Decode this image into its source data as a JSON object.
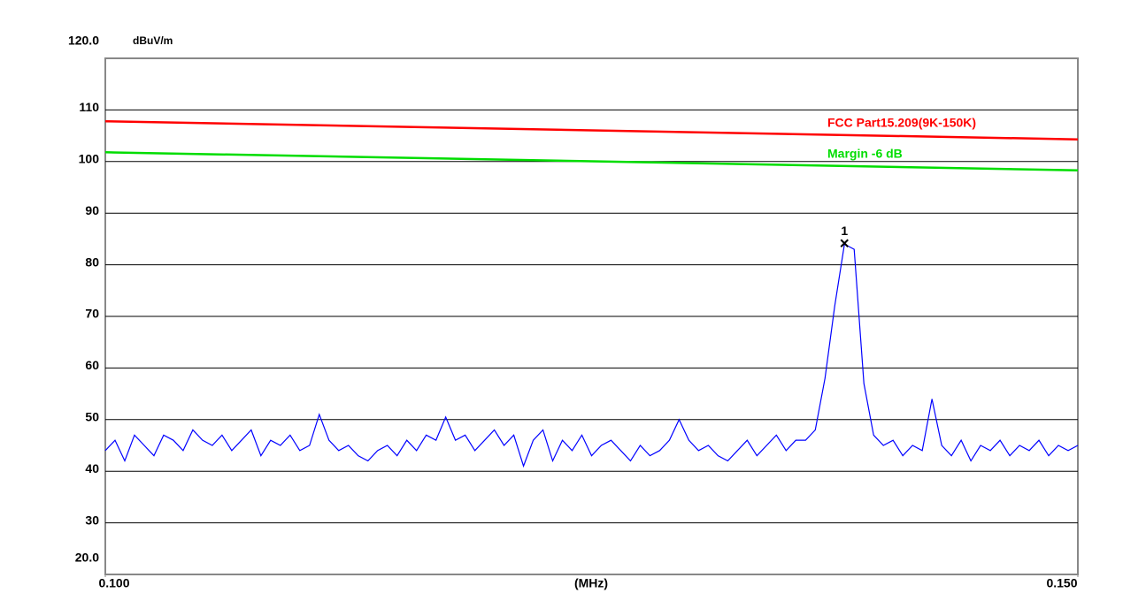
{
  "chart_data": {
    "type": "line",
    "y_unit": "dBuV/m",
    "xlabel": "(MHz)",
    "xlim": [
      0.1,
      0.15
    ],
    "xticks": [
      {
        "value": 0.1,
        "label": "0.100"
      },
      {
        "value": 0.15,
        "label": "0.150"
      }
    ],
    "ylim": [
      20,
      120
    ],
    "yticks": [
      {
        "value": 20,
        "label": "20.0"
      },
      30,
      40,
      50,
      60,
      70,
      80,
      90,
      100,
      110,
      {
        "value": 120,
        "label": "120.0"
      }
    ],
    "grid": true,
    "series": [
      {
        "name": "FCC Part15.209(9K-150K)",
        "color": "#ff0000",
        "x": [
          0.1,
          0.15
        ],
        "values": [
          107.8,
          104.3
        ]
      },
      {
        "name": "Margin -6 dB",
        "color": "#00dd00",
        "x": [
          0.1,
          0.15
        ],
        "values": [
          101.8,
          98.3
        ]
      },
      {
        "name": null,
        "color": "#0000ff",
        "x": [
          0.1,
          0.1005,
          0.101,
          0.1015,
          0.102,
          0.1025,
          0.103,
          0.1035,
          0.104,
          0.1045,
          0.105,
          0.1055,
          0.106,
          0.1065,
          0.107,
          0.1075,
          0.108,
          0.1085,
          0.109,
          0.1095,
          0.11,
          0.1105,
          0.111,
          0.1115,
          0.112,
          0.1125,
          0.113,
          0.1135,
          0.114,
          0.1145,
          0.115,
          0.1155,
          0.116,
          0.1165,
          0.117,
          0.1175,
          0.118,
          0.1185,
          0.119,
          0.1195,
          0.12,
          0.1205,
          0.121,
          0.1215,
          0.122,
          0.1225,
          0.123,
          0.1235,
          0.124,
          0.1245,
          0.125,
          0.1255,
          0.126,
          0.1265,
          0.127,
          0.1275,
          0.128,
          0.1285,
          0.129,
          0.1295,
          0.13,
          0.1305,
          0.131,
          0.1315,
          0.132,
          0.1325,
          0.133,
          0.1335,
          0.134,
          0.1345,
          0.135,
          0.1355,
          0.136,
          0.1365,
          0.137,
          0.1375,
          0.138,
          0.1385,
          0.139,
          0.1395,
          0.14,
          0.1405,
          0.141,
          0.1415,
          0.142,
          0.1425,
          0.143,
          0.1435,
          0.144,
          0.1445,
          0.145,
          0.1455,
          0.146,
          0.1465,
          0.147,
          0.1475,
          0.148,
          0.1485,
          0.149,
          0.1495,
          0.15
        ],
        "values": [
          44,
          46,
          42,
          47,
          45,
          43,
          47,
          46,
          44,
          48,
          46,
          45,
          47,
          44,
          46,
          48,
          43,
          46,
          45,
          47,
          44,
          45,
          51,
          46,
          44,
          45,
          43,
          42,
          44,
          45,
          43,
          46,
          44,
          47,
          46,
          50.5,
          46,
          47,
          44,
          46,
          48,
          45,
          47,
          41,
          46,
          48,
          42,
          46,
          44,
          47,
          43,
          45,
          46,
          44,
          42,
          45,
          43,
          44,
          46,
          50,
          46,
          44,
          45,
          43,
          42,
          44,
          46,
          43,
          45,
          47,
          44,
          46,
          46,
          48,
          58,
          72,
          84,
          83,
          57,
          47,
          45,
          46,
          43,
          45,
          44,
          54,
          45,
          43,
          46,
          42,
          45,
          44,
          46,
          43,
          45,
          44,
          46,
          43,
          45,
          44,
          45
        ]
      }
    ],
    "markers": [
      {
        "label": "1",
        "x": 0.138,
        "y": 84
      }
    ]
  }
}
